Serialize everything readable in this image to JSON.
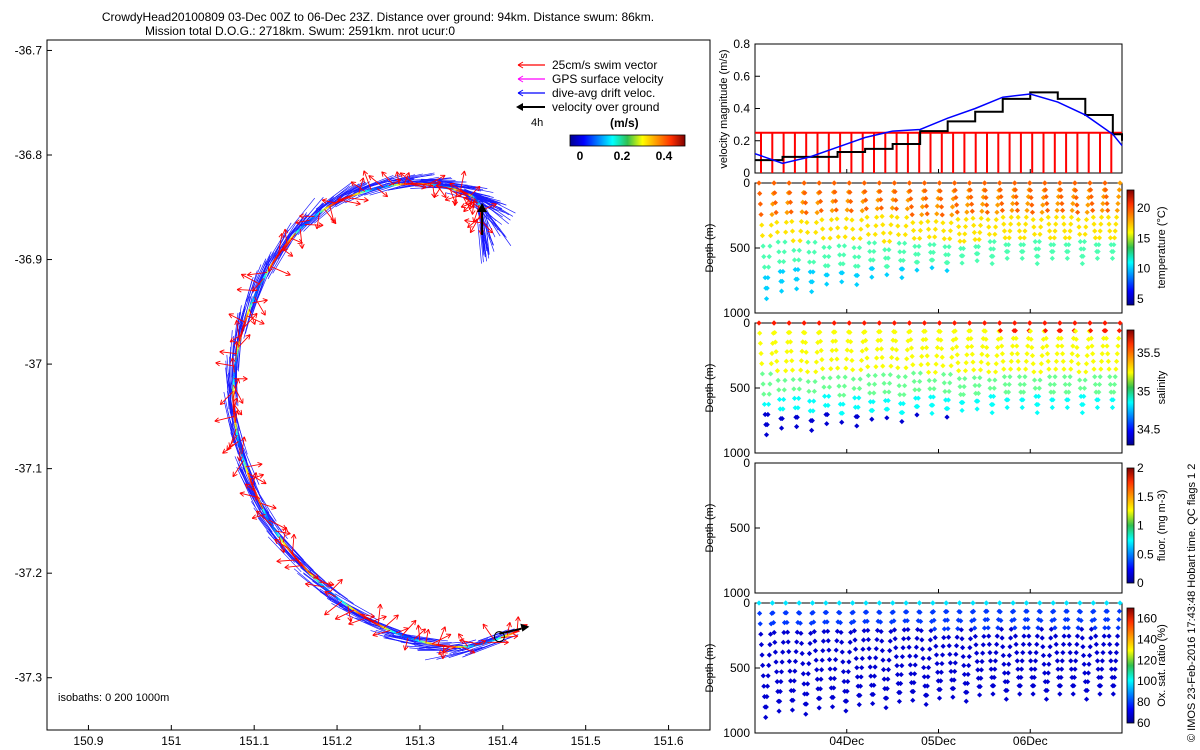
{
  "title": {
    "line1": "CrowdyHead20100809 03-Dec 00Z to 06-Dec 23Z. Distance over ground: 94km. Distance swum: 86km.",
    "line2": "Mission total D.O.G.: 2718km. Swum: 2591km. nrot ucur:0"
  },
  "map": {
    "xlim": [
      150.85,
      151.65
    ],
    "ylim": [
      -37.35,
      -36.69
    ],
    "xticks": [
      "150.9",
      "151",
      "151.1",
      "151.2",
      "151.3",
      "151.4",
      "151.5",
      "151.6"
    ],
    "yticks": [
      "-36.7",
      "-36.8",
      "-36.9",
      "-37",
      "-37.1",
      "-37.2",
      "-37.3"
    ],
    "legend": [
      {
        "label": "25cm/s swim vector",
        "color": "#ff0000"
      },
      {
        "label": "GPS surface velocity",
        "color": "#ff00ff"
      },
      {
        "label": "dive-avg drift veloc.",
        "color": "#0000ff"
      },
      {
        "label": "velocity over ground",
        "color": "#000000"
      }
    ],
    "time_marker": "4h",
    "colorbar_label": "(m/s)",
    "colorbar_ticks": [
      "0",
      "0.2",
      "0.4"
    ],
    "isobaths_label": "isobaths: 0   200  1000m"
  },
  "timeseries": {
    "date_ticks": [
      "04Dec",
      "05Dec",
      "06Dec"
    ],
    "velocity": {
      "ylabel": "velocity magnitude (m/s)",
      "yticks": [
        "0",
        "0.2",
        "0.4",
        "0.6",
        "0.8"
      ]
    },
    "depth_ticks": [
      "0",
      "500",
      "1000"
    ],
    "depth_ylabel": "Depth (m)",
    "temperature": {
      "label": "temperature (°C)",
      "ticks": [
        "5",
        "10",
        "15",
        "20"
      ],
      "range": [
        4,
        23
      ]
    },
    "salinity": {
      "label": "salinity",
      "ticks": [
        "34.5",
        "35",
        "35.5"
      ],
      "range": [
        34.3,
        35.8
      ]
    },
    "fluor": {
      "label": "fluor. (mg m-3)",
      "ticks": [
        "0",
        "0.5",
        "1",
        "1.5",
        "2"
      ],
      "range": [
        0,
        2
      ]
    },
    "oxygen": {
      "label": "Ox. sat. ratio (%)",
      "ticks": [
        "60",
        "80",
        "100",
        "120",
        "140",
        "160"
      ],
      "range": [
        60,
        170
      ]
    }
  },
  "credit": "© IMOS 23-Feb-2016 17:43:48 Hobart time. QC flags 1  2",
  "chart_data": {
    "type": "line",
    "title": "CrowdyHead20100809 03-Dec 00Z to 06-Dec 23Z. Distance over ground: 94km. Distance swum: 86km.",
    "track": {
      "lon": [
        151.375,
        151.37,
        151.35,
        151.31,
        151.26,
        151.2,
        151.15,
        151.11,
        151.085,
        151.075,
        151.08,
        151.1,
        151.13,
        151.18,
        151.24,
        151.3,
        151.36,
        151.42
      ],
      "lat": [
        -36.865,
        -36.845,
        -36.835,
        -36.828,
        -36.83,
        -36.845,
        -36.875,
        -36.92,
        -36.97,
        -37.02,
        -37.07,
        -37.12,
        -37.165,
        -37.21,
        -37.245,
        -37.265,
        -37.27,
        -37.255
      ]
    },
    "velocity_magnitude": {
      "ylim": [
        0,
        0.8
      ],
      "days": [
        3.0,
        3.3,
        3.6,
        3.9,
        4.2,
        4.5,
        4.8,
        5.1,
        5.4,
        5.7,
        6.0,
        6.3,
        6.6,
        6.9,
        7.0
      ],
      "drift": [
        0.12,
        0.06,
        0.1,
        0.16,
        0.22,
        0.26,
        0.27,
        0.34,
        0.4,
        0.47,
        0.49,
        0.44,
        0.36,
        0.24,
        0.17
      ],
      "over_ground": [
        0.08,
        0.1,
        0.1,
        0.13,
        0.15,
        0.18,
        0.26,
        0.32,
        0.38,
        0.46,
        0.5,
        0.46,
        0.36,
        0.24,
        0.2
      ],
      "swim_reference": 0.25
    },
    "sections": [
      {
        "variable": "temperature",
        "units": "°C",
        "range": [
          4,
          23
        ],
        "max_depth_early": 850,
        "max_depth_late": 580
      },
      {
        "variable": "salinity",
        "range": [
          34.3,
          35.8
        ],
        "max_depth_early": 820,
        "max_depth_late": 650
      },
      {
        "variable": "fluorescence",
        "units": "mg m-3",
        "range": [
          0,
          2
        ]
      },
      {
        "variable": "oxygen saturation ratio",
        "units": "%",
        "range": [
          60,
          170
        ],
        "max_depth_early": 840,
        "max_depth_late": 700
      }
    ]
  }
}
